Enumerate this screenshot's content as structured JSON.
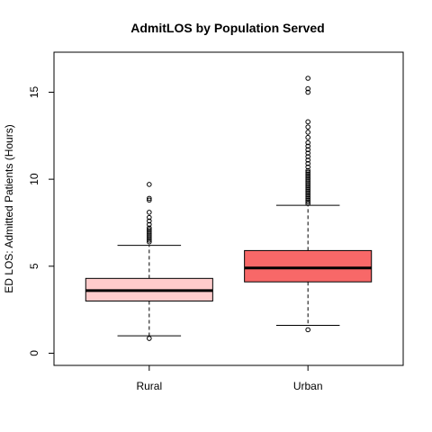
{
  "chart_data": {
    "type": "boxplot",
    "title": "AdmitLOS by Population Served",
    "xlabel": "",
    "ylabel": "ED LOS: Admitted Patients (Hours)",
    "ylim": [
      -0.7,
      17.3
    ],
    "yticks": [
      0,
      5,
      10,
      15
    ],
    "ytick_labels": [
      "0",
      "5",
      "10",
      "15"
    ],
    "grid": false,
    "legend": "none",
    "categories": [
      "Rural",
      "Urban"
    ],
    "colors": [
      "#ffcccc",
      "#f86868"
    ],
    "boxes": [
      {
        "name": "Rural",
        "whisker_low": 1.0,
        "q1": 3.0,
        "median": 3.6,
        "q3": 4.3,
        "whisker_high": 6.2,
        "outliers": [
          0.85,
          6.4,
          6.5,
          6.6,
          6.7,
          6.8,
          6.9,
          7.0,
          7.1,
          7.2,
          7.4,
          7.6,
          7.8,
          8.1,
          8.8,
          8.9,
          9.7
        ]
      },
      {
        "name": "Urban",
        "whisker_low": 1.6,
        "q1": 4.1,
        "median": 4.9,
        "q3": 5.9,
        "whisker_high": 8.5,
        "outliers": [
          1.35,
          8.6,
          8.7,
          8.8,
          8.9,
          9.0,
          9.1,
          9.2,
          9.3,
          9.4,
          9.5,
          9.6,
          9.7,
          9.8,
          9.9,
          10.0,
          10.1,
          10.2,
          10.3,
          10.4,
          10.5,
          10.7,
          10.9,
          11.1,
          11.3,
          11.5,
          11.7,
          11.9,
          12.1,
          12.4,
          12.7,
          13.0,
          13.3,
          15.0,
          15.2,
          15.8
        ]
      }
    ]
  }
}
